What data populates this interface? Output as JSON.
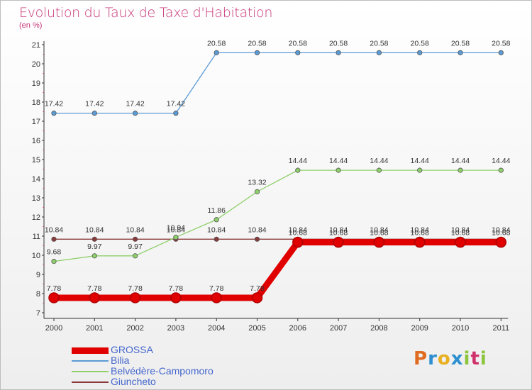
{
  "title": "Evolution du Taux de Taxe d'Habitation",
  "unit": "(en %)",
  "logo": {
    "letters": [
      "P",
      "r",
      "o",
      "x",
      "i",
      "t",
      "i"
    ],
    "colors": [
      "#e06a20",
      "#2e8fd0",
      "#e8b020",
      "#2e8fd0",
      "#8cc43c",
      "#d0306a",
      "#8cc43c"
    ]
  },
  "chart_data": {
    "type": "line",
    "x": [
      "2000",
      "2001",
      "2002",
      "2003",
      "2004",
      "2005",
      "2006",
      "2007",
      "2008",
      "2009",
      "2010",
      "2011"
    ],
    "ylim": [
      7,
      21
    ],
    "yticks": [
      "7",
      "8",
      "9",
      "10",
      "11",
      "12",
      "13",
      "14",
      "15",
      "16",
      "17",
      "18",
      "19",
      "20",
      "21"
    ],
    "grid": false,
    "legend": "bottom-left",
    "series": [
      {
        "name": "Giuncheto",
        "color": "#8b3a3a",
        "values": [
          10.84,
          10.84,
          10.84,
          10.84,
          10.84,
          10.84,
          10.84,
          10.84,
          10.84,
          10.84,
          10.84,
          10.84
        ],
        "labels": [
          "10.84",
          "10.84",
          "10.84",
          "10.84",
          "10.84",
          "10.84",
          "10.84",
          "10.84",
          "10.84",
          "10.84",
          "10.84",
          "10.84"
        ]
      },
      {
        "name": "Belvédère-Campomoro",
        "color": "#8fd06a",
        "values": [
          9.68,
          9.97,
          9.97,
          10.94,
          11.86,
          13.32,
          14.44,
          14.44,
          14.44,
          14.44,
          14.44,
          14.44
        ],
        "labels": [
          "9.68",
          "9.97",
          "9.97",
          "10.94",
          "11.86",
          "13.32",
          "14.44",
          "14.44",
          "14.44",
          "14.44",
          "14.44",
          "14.44"
        ]
      },
      {
        "name": "Bilia",
        "color": "#5b9bd5",
        "values": [
          17.42,
          17.42,
          17.42,
          17.42,
          20.58,
          20.58,
          20.58,
          20.58,
          20.58,
          20.58,
          20.58,
          20.58
        ],
        "labels": [
          "17.42",
          "17.42",
          "17.42",
          "17.42",
          "20.58",
          "20.58",
          "20.58",
          "20.58",
          "20.58",
          "20.58",
          "20.58",
          "20.58"
        ]
      },
      {
        "name": "GROSSA",
        "color": "#e00000",
        "values": [
          7.78,
          7.78,
          7.78,
          7.78,
          7.78,
          7.78,
          10.68,
          10.68,
          10.68,
          10.68,
          10.68,
          10.68
        ],
        "labels": [
          "7.78",
          "7.78",
          "7.78",
          "7.78",
          "7.78",
          "7.78",
          "10.68",
          "10.68",
          "10.68",
          "10.68",
          "10.68",
          "10.68"
        ]
      }
    ],
    "legend_order": [
      "GROSSA",
      "Bilia",
      "Belvédère-Campomoro",
      "Giuncheto"
    ]
  }
}
